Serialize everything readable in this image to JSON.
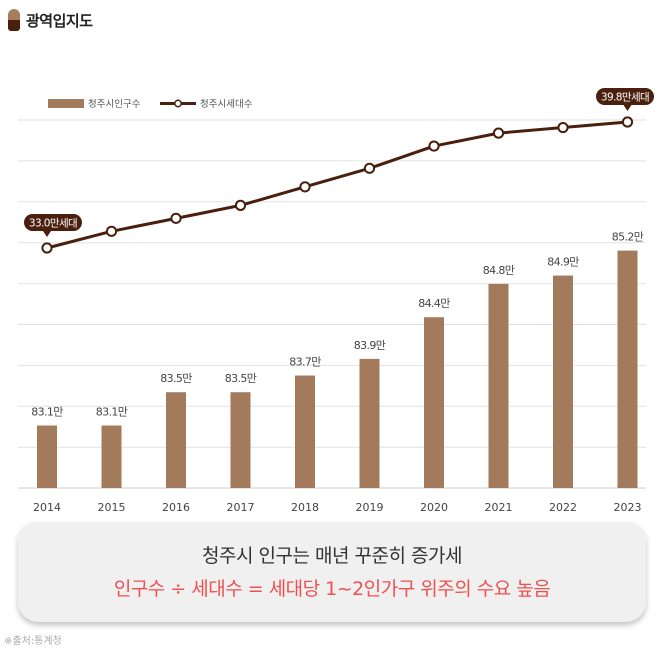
{
  "header": {
    "title": "광역입지도"
  },
  "chart_data": {
    "type": "bar",
    "categories": [
      "2014",
      "2015",
      "2016",
      "2017",
      "2018",
      "2019",
      "2020",
      "2021",
      "2022",
      "2023"
    ],
    "series": [
      {
        "name": "청주시인구수",
        "type": "bar",
        "color": "#a37a5c",
        "values": [
          83.1,
          83.1,
          83.5,
          83.5,
          83.7,
          83.9,
          84.4,
          84.8,
          84.9,
          85.2
        ],
        "labels": [
          "83.1만",
          "83.1만",
          "83.5만",
          "83.5만",
          "83.7만",
          "83.9만",
          "84.4만",
          "84.8만",
          "84.9만",
          "85.2만"
        ]
      },
      {
        "name": "청주시세대수",
        "type": "line",
        "color": "#4a1f0d",
        "values": [
          33.0,
          33.9,
          34.6,
          35.3,
          36.3,
          37.3,
          38.5,
          39.2,
          39.5,
          39.8
        ],
        "labels": [
          "33.0만세대",
          "",
          "",
          "",
          "",
          "",
          "",
          "",
          "",
          "39.8만세대"
        ]
      }
    ],
    "legend": "top-left",
    "grid": true
  },
  "note": {
    "line1": "청주시 인구는 매년 꾸준히 증가세",
    "line2": "인구수 ÷ 세대수 = 세대당 1~2인가구 위주의 수요 높음"
  },
  "source": "※출처:통계청"
}
